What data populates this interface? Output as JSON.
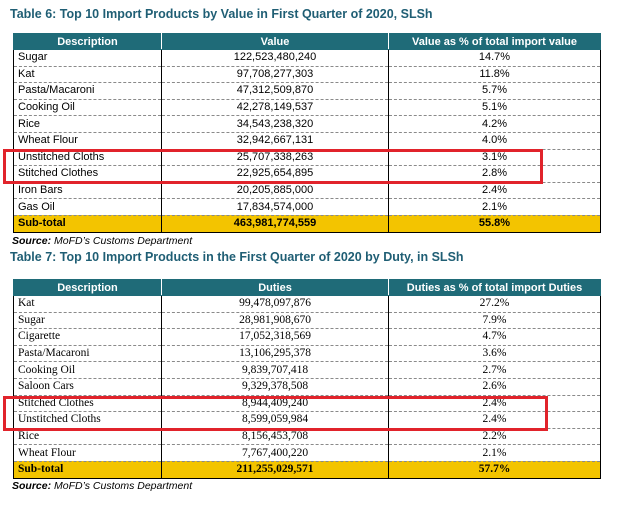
{
  "table6": {
    "title": "Table 6: Top 10 Import Products by Value in First Quarter of 2020, SLSh",
    "headers": [
      "Description",
      "Value",
      "Value as % of total import value"
    ],
    "rows": [
      [
        "Sugar",
        "122,523,480,240",
        "14.7%"
      ],
      [
        "Kat",
        "97,708,277,303",
        "11.8%"
      ],
      [
        "Pasta/Macaroni",
        "47,312,509,870",
        "5.7%"
      ],
      [
        "Cooking Oil",
        "42,278,149,537",
        "5.1%"
      ],
      [
        "Rice",
        "34,543,238,320",
        "4.2%"
      ],
      [
        "Wheat Flour",
        "32,942,667,131",
        "4.0%"
      ],
      [
        "Unstitched Cloths",
        "25,707,338,263",
        "3.1%"
      ],
      [
        "Stitched Clothes",
        "22,925,654,895",
        "2.8%"
      ],
      [
        "Iron Bars",
        "20,205,885,000",
        "2.4%"
      ],
      [
        "Gas Oil",
        "17,834,574,000",
        "2.1%"
      ]
    ],
    "subtotal": [
      "Sub-total",
      "463,981,774,559",
      "55.8%"
    ],
    "source_label": "Source:",
    "source_text": " MoFD’s Customs Department"
  },
  "table7": {
    "title": "Table 7: Top 10 Import Products in the First Quarter of 2020 by Duty, in SLSh",
    "headers": [
      "Description",
      "Duties",
      "Duties as % of total import Duties"
    ],
    "rows": [
      [
        "Kat",
        "99,478,097,876",
        "27.2%"
      ],
      [
        "Sugar",
        "28,981,908,670",
        "7.9%"
      ],
      [
        "Cigarette",
        "17,052,318,569",
        "4.7%"
      ],
      [
        "Pasta/Macaroni",
        "13,106,295,378",
        "3.6%"
      ],
      [
        "Cooking Oil",
        "9,839,707,418",
        "2.7%"
      ],
      [
        "Saloon Cars",
        "9,329,378,508",
        "2.6%"
      ],
      [
        "Stitched Clothes",
        "8,944,409,240",
        "2.4%"
      ],
      [
        "Unstitched Cloths",
        "8,599,059,984",
        "2.4%"
      ],
      [
        "Rice",
        "8,156,453,708",
        "2.2%"
      ],
      [
        "Wheat Flour",
        "7,767,400,220",
        "2.1%"
      ]
    ],
    "subtotal": [
      "Sub-total",
      "211,255,029,571",
      "57.7%"
    ],
    "source_label": "Source:",
    "source_text": " MoFD’s Customs Department"
  },
  "colors": {
    "header_bg": "#1f6b78",
    "title": "#1f5e74",
    "subtotal_bg": "#f3c400",
    "highlight": "#e1232b"
  }
}
